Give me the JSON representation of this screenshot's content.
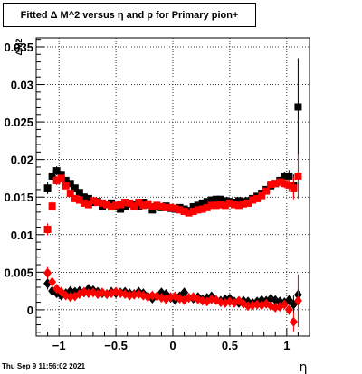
{
  "title": "Fitted Δ M^2 versus η and p for Primary pion+",
  "footer": "Thu Sep  9 11:56:02 2021",
  "chart_data": {
    "type": "scatter",
    "title": "Fitted Δ M^2 versus η and p for Primary pion+",
    "xlabel": "η",
    "ylabel": "ΔM2",
    "xlim": [
      -1.2,
      1.2
    ],
    "ylim": [
      -0.0035,
      0.0362
    ],
    "grid": true,
    "xticks": [
      -1,
      -0.5,
      0,
      0.5,
      1
    ],
    "xtick_labels": [
      "−1",
      "−0.5",
      "0",
      "0.5",
      "1"
    ],
    "yticks": [
      0,
      0.005,
      0.01,
      0.015,
      0.02,
      0.025,
      0.03,
      0.035
    ],
    "ytick_labels": [
      "0",
      "0.005",
      "0.01",
      "0.015",
      "0.02",
      "0.025",
      "0.03",
      "0.035"
    ],
    "series": [
      {
        "color": "#000000",
        "marker": "square",
        "x": [
          -1.1,
          -1.06,
          -1.02,
          -0.98,
          -0.94,
          -0.9,
          -0.86,
          -0.82,
          -0.78,
          -0.74,
          -0.7,
          -0.66,
          -0.62,
          -0.58,
          -0.54,
          -0.5,
          -0.46,
          -0.42,
          -0.38,
          -0.34,
          -0.3,
          -0.26,
          -0.22,
          -0.18,
          -0.14,
          -0.1,
          -0.06,
          -0.02,
          0.02,
          0.06,
          0.1,
          0.14,
          0.18,
          0.22,
          0.26,
          0.3,
          0.34,
          0.38,
          0.42,
          0.46,
          0.5,
          0.54,
          0.58,
          0.62,
          0.66,
          0.7,
          0.74,
          0.78,
          0.82,
          0.86,
          0.9,
          0.94,
          0.98,
          1.02,
          1.06,
          1.1
        ],
        "y": [
          0.0162,
          0.0178,
          0.0185,
          0.018,
          0.0172,
          0.0168,
          0.0162,
          0.0156,
          0.015,
          0.0148,
          0.0143,
          0.0144,
          0.0138,
          0.014,
          0.0142,
          0.0137,
          0.0134,
          0.0137,
          0.0141,
          0.014,
          0.0138,
          0.0143,
          0.014,
          0.0133,
          0.0138,
          0.0136,
          0.0138,
          0.0135,
          0.0134,
          0.0136,
          0.0134,
          0.0132,
          0.0137,
          0.0139,
          0.0142,
          0.0144,
          0.0146,
          0.0147,
          0.0147,
          0.0145,
          0.0144,
          0.0143,
          0.0145,
          0.0144,
          0.0145,
          0.0148,
          0.0151,
          0.0155,
          0.016,
          0.0165,
          0.0168,
          0.0172,
          0.0178,
          0.0178,
          0.0165,
          0.027
        ],
        "err": [
          0.0008,
          0.0007,
          0.0006,
          0.0005,
          0.0004,
          0.0004,
          0.0004,
          0.0004,
          0.0004,
          0.0004,
          0.0003,
          0.0003,
          0.0003,
          0.0003,
          0.0003,
          0.0003,
          0.0003,
          0.0003,
          0.0003,
          0.0003,
          0.0003,
          0.0003,
          0.0003,
          0.0003,
          0.0003,
          0.0003,
          0.0003,
          0.0003,
          0.0003,
          0.0003,
          0.0003,
          0.0003,
          0.0003,
          0.0003,
          0.0003,
          0.0003,
          0.0003,
          0.0003,
          0.0003,
          0.0003,
          0.0003,
          0.0003,
          0.0003,
          0.0003,
          0.0003,
          0.0003,
          0.0004,
          0.0004,
          0.0004,
          0.0004,
          0.0004,
          0.0005,
          0.0006,
          0.0008,
          0.0015,
          0.0065
        ]
      },
      {
        "color": "#ff0000",
        "marker": "square",
        "x": [
          -1.1,
          -1.06,
          -1.02,
          -0.98,
          -0.94,
          -0.9,
          -0.86,
          -0.82,
          -0.78,
          -0.74,
          -0.7,
          -0.66,
          -0.62,
          -0.58,
          -0.54,
          -0.5,
          -0.46,
          -0.42,
          -0.38,
          -0.34,
          -0.3,
          -0.26,
          -0.22,
          -0.18,
          -0.14,
          -0.1,
          -0.06,
          -0.02,
          0.02,
          0.06,
          0.1,
          0.14,
          0.18,
          0.22,
          0.26,
          0.3,
          0.34,
          0.38,
          0.42,
          0.46,
          0.5,
          0.54,
          0.58,
          0.62,
          0.66,
          0.7,
          0.74,
          0.78,
          0.82,
          0.86,
          0.9,
          0.94,
          0.98,
          1.02,
          1.06,
          1.1
        ],
        "y": [
          0.0107,
          0.0138,
          0.0172,
          0.0175,
          0.0165,
          0.0155,
          0.0148,
          0.0146,
          0.0142,
          0.014,
          0.0145,
          0.0143,
          0.0142,
          0.014,
          0.0137,
          0.0139,
          0.014,
          0.0143,
          0.0142,
          0.0138,
          0.0143,
          0.0139,
          0.0141,
          0.0137,
          0.0139,
          0.0137,
          0.0136,
          0.0136,
          0.0135,
          0.0133,
          0.0131,
          0.0129,
          0.0131,
          0.0133,
          0.0134,
          0.0136,
          0.0139,
          0.0139,
          0.014,
          0.0139,
          0.0142,
          0.014,
          0.0139,
          0.0141,
          0.0142,
          0.0146,
          0.0148,
          0.0152,
          0.0158,
          0.0167,
          0.0168,
          0.017,
          0.0168,
          0.0166,
          0.0162,
          0.0178
        ],
        "err": [
          0.0008,
          0.0007,
          0.0006,
          0.0005,
          0.0004,
          0.0004,
          0.0004,
          0.0004,
          0.0004,
          0.0004,
          0.0003,
          0.0003,
          0.0003,
          0.0003,
          0.0003,
          0.0003,
          0.0003,
          0.0003,
          0.0003,
          0.0003,
          0.0003,
          0.0003,
          0.0003,
          0.0003,
          0.0003,
          0.0003,
          0.0003,
          0.0003,
          0.0003,
          0.0003,
          0.0003,
          0.0003,
          0.0003,
          0.0003,
          0.0003,
          0.0003,
          0.0003,
          0.0003,
          0.0003,
          0.0003,
          0.0003,
          0.0003,
          0.0003,
          0.0003,
          0.0003,
          0.0003,
          0.0004,
          0.0004,
          0.0004,
          0.0004,
          0.0004,
          0.0005,
          0.0006,
          0.0008,
          0.0015,
          0.003
        ]
      },
      {
        "color": "#000000",
        "marker": "diamond",
        "x": [
          -1.1,
          -1.06,
          -1.02,
          -0.98,
          -0.94,
          -0.9,
          -0.86,
          -0.82,
          -0.78,
          -0.74,
          -0.7,
          -0.66,
          -0.62,
          -0.58,
          -0.54,
          -0.5,
          -0.46,
          -0.42,
          -0.38,
          -0.34,
          -0.3,
          -0.26,
          -0.22,
          -0.18,
          -0.14,
          -0.1,
          -0.06,
          -0.02,
          0.02,
          0.06,
          0.1,
          0.14,
          0.18,
          0.22,
          0.26,
          0.3,
          0.34,
          0.38,
          0.42,
          0.46,
          0.5,
          0.54,
          0.58,
          0.62,
          0.66,
          0.7,
          0.74,
          0.78,
          0.82,
          0.86,
          0.9,
          0.94,
          0.98,
          1.02,
          1.06,
          1.1
        ],
        "y": [
          0.0035,
          0.0025,
          0.0022,
          0.0019,
          0.0022,
          0.0025,
          0.0024,
          0.0025,
          0.0023,
          0.0028,
          0.0026,
          0.0024,
          0.0022,
          0.0021,
          0.0024,
          0.0022,
          0.0023,
          0.0024,
          0.0022,
          0.0021,
          0.0024,
          0.0022,
          0.0018,
          0.0015,
          0.0018,
          0.0023,
          0.0021,
          0.0016,
          0.0013,
          0.0018,
          0.0023,
          0.0016,
          0.0015,
          0.0017,
          0.0014,
          0.0016,
          0.0018,
          0.0013,
          0.0012,
          0.0014,
          0.0015,
          0.0011,
          0.0009,
          0.0012,
          0.0011,
          0.0009,
          0.0011,
          0.0013,
          0.0012,
          0.0015,
          0.0013,
          0.0011,
          0.001,
          0.0013,
          0.0007,
          0.002
        ],
        "err": [
          0.0008,
          0.0006,
          0.0005,
          0.0004,
          0.0004,
          0.0004,
          0.0003,
          0.0003,
          0.0003,
          0.0003,
          0.0003,
          0.0003,
          0.0003,
          0.0003,
          0.0003,
          0.0003,
          0.0003,
          0.0003,
          0.0003,
          0.0003,
          0.0003,
          0.0003,
          0.0003,
          0.0003,
          0.0003,
          0.0003,
          0.0003,
          0.0003,
          0.0003,
          0.0003,
          0.0003,
          0.0003,
          0.0003,
          0.0003,
          0.0003,
          0.0003,
          0.0003,
          0.0003,
          0.0003,
          0.0003,
          0.0003,
          0.0003,
          0.0003,
          0.0003,
          0.0003,
          0.0003,
          0.0003,
          0.0003,
          0.0003,
          0.0003,
          0.0004,
          0.0004,
          0.0005,
          0.0006,
          0.0012,
          0.0008
        ]
      },
      {
        "color": "#ff0000",
        "marker": "diamond",
        "x": [
          -1.1,
          -1.06,
          -1.02,
          -0.98,
          -0.94,
          -0.9,
          -0.86,
          -0.82,
          -0.78,
          -0.74,
          -0.7,
          -0.66,
          -0.62,
          -0.58,
          -0.54,
          -0.5,
          -0.46,
          -0.42,
          -0.38,
          -0.34,
          -0.3,
          -0.26,
          -0.22,
          -0.18,
          -0.14,
          -0.1,
          -0.06,
          -0.02,
          0.02,
          0.06,
          0.1,
          0.14,
          0.18,
          0.22,
          0.26,
          0.3,
          0.34,
          0.38,
          0.42,
          0.46,
          0.5,
          0.54,
          0.58,
          0.62,
          0.66,
          0.7,
          0.74,
          0.78,
          0.82,
          0.86,
          0.9,
          0.94,
          0.98,
          1.02,
          1.06,
          1.1
        ],
        "y": [
          0.0049,
          0.0037,
          0.0028,
          0.0024,
          0.0019,
          0.0017,
          0.0018,
          0.0021,
          0.0024,
          0.0022,
          0.0023,
          0.0021,
          0.0023,
          0.0021,
          0.0022,
          0.0024,
          0.0022,
          0.0021,
          0.0019,
          0.002,
          0.0021,
          0.0019,
          0.0017,
          0.0019,
          0.0018,
          0.0016,
          0.0014,
          0.0017,
          0.0018,
          0.0015,
          0.0013,
          0.0016,
          0.0017,
          0.0014,
          0.0012,
          0.0011,
          0.0014,
          0.0013,
          0.001,
          0.0009,
          0.0011,
          0.0009,
          0.0012,
          0.0008,
          0.0005,
          0.0006,
          0.0007,
          0.0006,
          0.0008,
          0.0005,
          0.0003,
          0.0004,
          0.0007,
          0.0,
          -0.0016,
          0.0012
        ],
        "err": [
          0.0008,
          0.0006,
          0.0005,
          0.0004,
          0.0004,
          0.0004,
          0.0003,
          0.0003,
          0.0003,
          0.0003,
          0.0003,
          0.0003,
          0.0003,
          0.0003,
          0.0003,
          0.0003,
          0.0003,
          0.0003,
          0.0003,
          0.0003,
          0.0003,
          0.0003,
          0.0003,
          0.0003,
          0.0003,
          0.0003,
          0.0003,
          0.0003,
          0.0003,
          0.0003,
          0.0003,
          0.0003,
          0.0003,
          0.0003,
          0.0003,
          0.0003,
          0.0003,
          0.0003,
          0.0003,
          0.0003,
          0.0003,
          0.0003,
          0.0003,
          0.0003,
          0.0003,
          0.0003,
          0.0003,
          0.0003,
          0.0003,
          0.0003,
          0.0004,
          0.0004,
          0.0005,
          0.0007,
          0.0013,
          0.0035
        ]
      }
    ]
  }
}
